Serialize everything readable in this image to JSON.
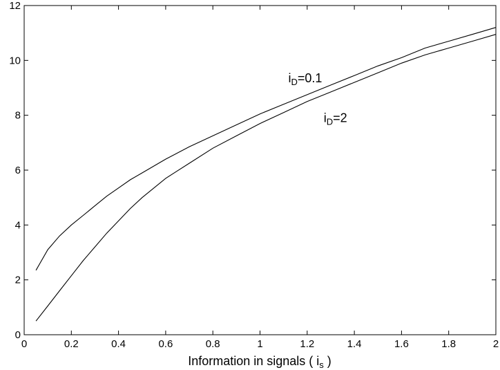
{
  "chart_data": {
    "type": "line",
    "title": "",
    "xlabel": "Information in signals ( i",
    "xlabel_sub": "s",
    "xlabel_end": " )",
    "ylabel": "",
    "xlim": [
      0,
      2
    ],
    "ylim": [
      0,
      12
    ],
    "x_ticks": [
      0,
      0.2,
      0.4,
      0.6,
      0.8,
      1,
      1.2,
      1.4,
      1.6,
      1.8,
      2
    ],
    "x_tick_labels": [
      "0",
      "0.2",
      "0.4",
      "0.6",
      "0.8",
      "1",
      "1.2",
      "1.4",
      "1.6",
      "1.8",
      "2"
    ],
    "y_ticks": [
      0,
      2,
      4,
      6,
      8,
      10,
      12
    ],
    "y_tick_labels": [
      "0",
      "2",
      "4",
      "6",
      "8",
      "10",
      "12"
    ],
    "grid": false,
    "legend": "none",
    "series": [
      {
        "label_main": "i",
        "label_sub": "D",
        "label_value": "=0.1",
        "label_at": [
          1.12,
          9.2
        ],
        "x": [
          0.05,
          0.1,
          0.15,
          0.2,
          0.25,
          0.3,
          0.35,
          0.4,
          0.45,
          0.5,
          0.6,
          0.7,
          0.8,
          0.9,
          1.0,
          1.1,
          1.2,
          1.3,
          1.4,
          1.5,
          1.6,
          1.7,
          1.8,
          1.9,
          2.0
        ],
        "values": [
          2.35,
          3.1,
          3.6,
          4.0,
          4.35,
          4.7,
          5.05,
          5.35,
          5.65,
          5.9,
          6.4,
          6.85,
          7.25,
          7.65,
          8.05,
          8.4,
          8.75,
          9.1,
          9.45,
          9.8,
          10.1,
          10.45,
          10.7,
          10.95,
          11.2
        ]
      },
      {
        "label_main": "i",
        "label_sub": "D",
        "label_value": "=2",
        "label_at": [
          1.27,
          7.75
        ],
        "x": [
          0.05,
          0.1,
          0.15,
          0.2,
          0.25,
          0.3,
          0.35,
          0.4,
          0.45,
          0.5,
          0.6,
          0.7,
          0.8,
          0.9,
          1.0,
          1.1,
          1.2,
          1.3,
          1.4,
          1.5,
          1.6,
          1.7,
          1.8,
          1.9,
          2.0
        ],
        "values": [
          0.5,
          1.05,
          1.6,
          2.15,
          2.7,
          3.2,
          3.7,
          4.15,
          4.6,
          5.0,
          5.7,
          6.25,
          6.8,
          7.25,
          7.7,
          8.1,
          8.5,
          8.85,
          9.2,
          9.55,
          9.9,
          10.2,
          10.45,
          10.7,
          10.95
        ]
      }
    ]
  }
}
